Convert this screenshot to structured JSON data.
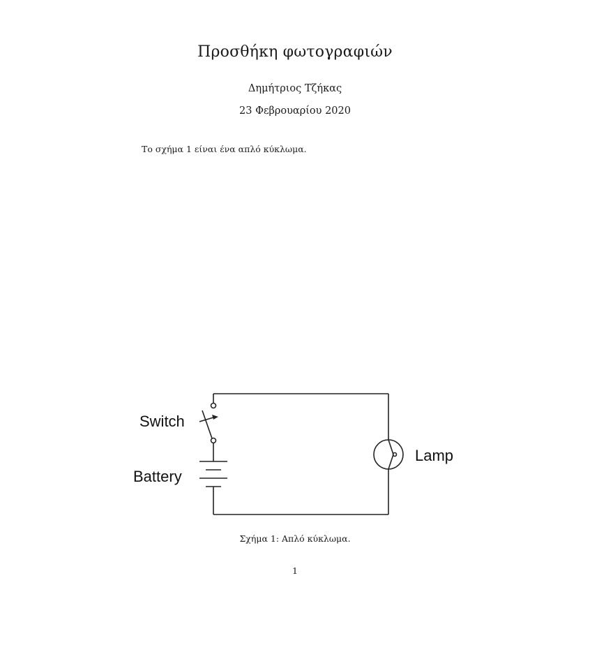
{
  "document": {
    "title": "Προσθήκη φωτογραφιών",
    "author": "Δημήτριος Τζήκας",
    "date": "23 Φεβρουαρίου 2020",
    "paragraph": "Το σχήμα 1 είναι ένα απλό κύκλωμα.",
    "figure": {
      "labels": {
        "switch": "Switch",
        "battery": "Battery",
        "lamp": "Lamp"
      },
      "caption": "Σχήμα 1: Απλό κύκλωμα."
    },
    "page_number": "1"
  }
}
